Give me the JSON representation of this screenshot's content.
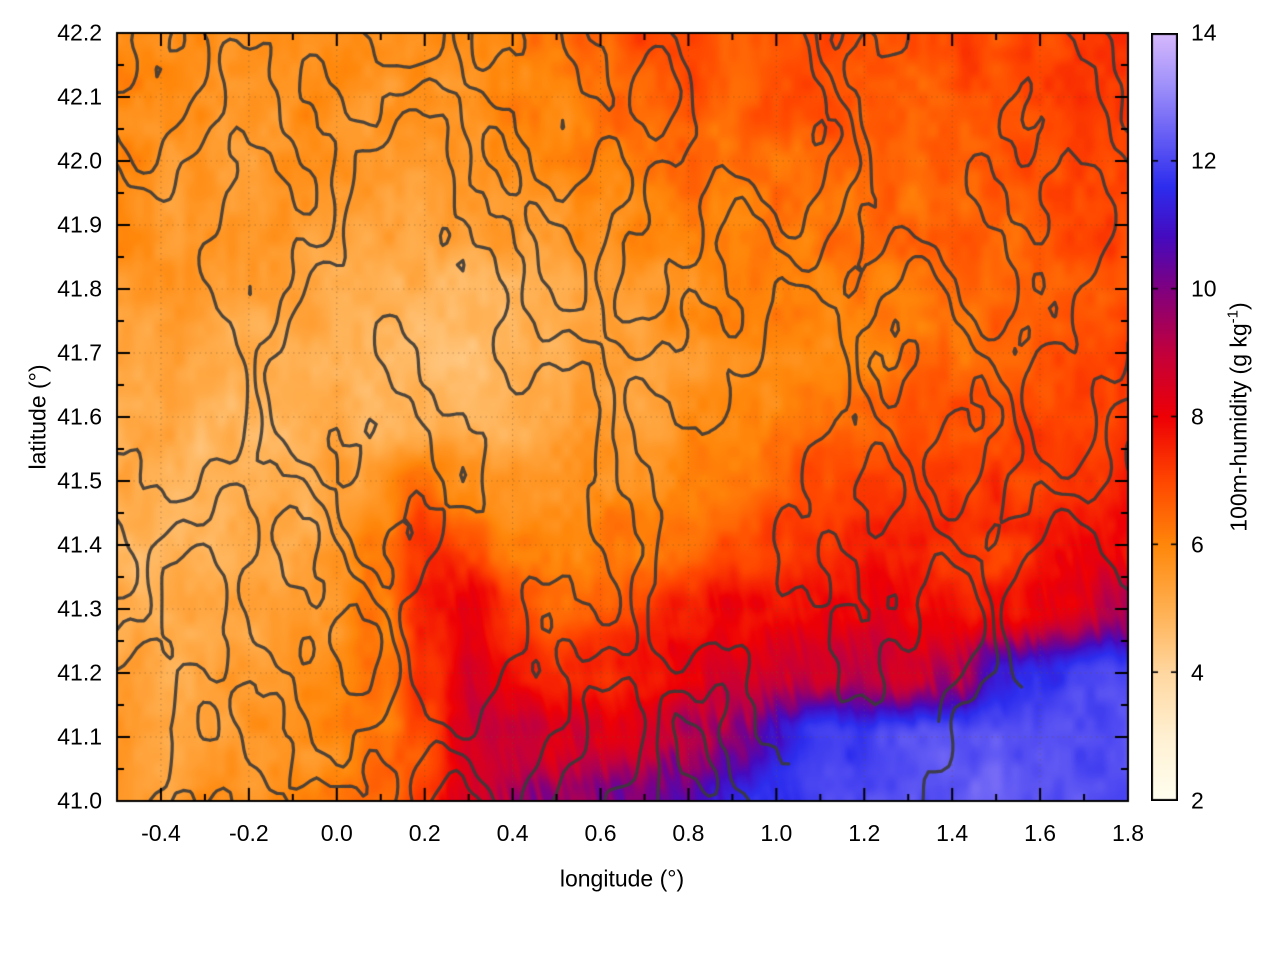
{
  "figure": {
    "background": "#FFFFFF"
  },
  "chart_data": {
    "type": "heatmap",
    "title": "",
    "xlabel": "longitude (°)",
    "ylabel": "latitude (°)",
    "xlim": [
      -0.5,
      1.8
    ],
    "ylim": [
      41.0,
      42.2
    ],
    "xticks": {
      "values": [
        -0.4,
        -0.2,
        0.0,
        0.2,
        0.4,
        0.6,
        0.8,
        1.0,
        1.2,
        1.4,
        1.6,
        1.8
      ],
      "labels": [
        "-0.4",
        "-0.2",
        "0.0",
        "0.2",
        "0.4",
        "0.6",
        "0.8",
        "1.0",
        "1.2",
        "1.4",
        "1.6",
        "1.8"
      ],
      "minor_step": 0.1
    },
    "yticks": {
      "values": [
        41.0,
        41.1,
        41.2,
        41.3,
        41.4,
        41.5,
        41.6,
        41.7,
        41.8,
        41.9,
        42.0,
        42.1,
        42.2
      ],
      "labels": [
        "41.0",
        "41.1",
        "41.2",
        "41.3",
        "41.4",
        "41.5",
        "41.6",
        "41.7",
        "41.8",
        "41.9",
        "42.0",
        "42.1",
        "42.2"
      ],
      "minor_step": 0.05
    },
    "grid": {
      "x_step": 0.2,
      "y_step": 0.1,
      "style": "dotted",
      "color": "rgba(110,80,50,0.45)"
    },
    "colorbar": {
      "label_main": "100m-humidity (g kg",
      "label_sup": "-1",
      "label_end": ")",
      "range": [
        2,
        14
      ],
      "tick_values": [
        2,
        4,
        6,
        8,
        10,
        12,
        14
      ],
      "tick_labels": [
        "2",
        "4",
        "6",
        "8",
        "10",
        "12",
        "14"
      ],
      "palette": [
        [
          2,
          255,
          255,
          240
        ],
        [
          3,
          255,
          240,
          210
        ],
        [
          4,
          255,
          215,
          160
        ],
        [
          5,
          255,
          175,
          80
        ],
        [
          6,
          255,
          135,
          10
        ],
        [
          7,
          255,
          70,
          0
        ],
        [
          8,
          238,
          0,
          5
        ],
        [
          9,
          195,
          0,
          60
        ],
        [
          10,
          128,
          0,
          128
        ],
        [
          10.8,
          70,
          10,
          190
        ],
        [
          11.6,
          45,
          45,
          238
        ],
        [
          12.5,
          110,
          100,
          245
        ],
        [
          13.2,
          160,
          145,
          250
        ],
        [
          14,
          215,
          185,
          252
        ]
      ]
    },
    "humidity_grid": {
      "units": "g kg-1",
      "lon_start": -0.5,
      "lon_step": 0.1,
      "lat_start": 42.2,
      "lat_step": -0.1,
      "rows": [
        [
          6.0,
          5.9,
          5.8,
          5.8,
          5.9,
          6.0,
          5.9,
          5.8,
          5.9,
          6.1,
          6.3,
          6.6,
          6.9,
          7.0,
          6.6,
          6.9,
          7.1,
          6.8,
          6.7,
          6.9,
          7.0,
          7.1,
          7.3,
          7.4
        ],
        [
          5.9,
          5.8,
          5.7,
          5.7,
          5.8,
          5.8,
          5.7,
          5.7,
          5.8,
          6.0,
          6.1,
          6.4,
          6.7,
          7.0,
          6.5,
          6.8,
          7.0,
          6.6,
          6.6,
          6.8,
          6.9,
          7.0,
          7.1,
          7.3
        ],
        [
          5.9,
          5.7,
          5.6,
          5.5,
          5.6,
          5.6,
          5.5,
          5.5,
          5.6,
          5.7,
          5.9,
          6.1,
          6.3,
          6.5,
          6.3,
          6.4,
          6.6,
          6.5,
          6.5,
          6.6,
          6.7,
          6.9,
          7.0,
          7.1
        ],
        [
          5.8,
          5.6,
          5.5,
          5.4,
          5.4,
          5.4,
          5.3,
          5.3,
          5.4,
          5.5,
          5.6,
          5.8,
          6.0,
          6.2,
          6.1,
          6.2,
          6.3,
          6.3,
          6.4,
          6.5,
          6.6,
          6.7,
          6.9,
          7.0
        ],
        [
          5.6,
          5.5,
          5.3,
          5.2,
          5.2,
          5.2,
          5.1,
          5.0,
          4.8,
          4.9,
          5.1,
          5.3,
          5.6,
          5.8,
          5.9,
          6.0,
          6.1,
          6.2,
          6.3,
          6.4,
          6.5,
          6.7,
          6.8,
          6.9
        ],
        [
          5.5,
          5.3,
          5.2,
          5.0,
          5.1,
          5.1,
          4.9,
          4.8,
          4.7,
          4.8,
          5.0,
          5.2,
          5.4,
          5.6,
          5.8,
          5.9,
          6.1,
          6.1,
          6.3,
          6.4,
          6.6,
          6.7,
          6.9,
          7.0
        ],
        [
          5.3,
          5.1,
          4.9,
          4.9,
          5.0,
          5.1,
          4.9,
          4.8,
          4.8,
          5.0,
          5.2,
          5.4,
          5.5,
          5.7,
          5.9,
          6.1,
          6.3,
          6.5,
          6.6,
          6.8,
          6.9,
          7.0,
          7.1,
          7.2
        ],
        [
          5.1,
          4.9,
          4.8,
          4.9,
          5.1,
          5.3,
          5.6,
          6.3,
          5.9,
          5.5,
          5.5,
          5.7,
          5.9,
          6.1,
          6.3,
          6.6,
          6.8,
          7.0,
          7.0,
          7.2,
          7.1,
          7.2,
          7.4,
          7.5
        ],
        [
          4.9,
          4.8,
          4.9,
          5.1,
          5.2,
          5.5,
          6.1,
          7.4,
          6.9,
          6.2,
          6.0,
          6.1,
          6.3,
          6.6,
          6.9,
          7.1,
          7.3,
          7.5,
          7.3,
          7.4,
          7.2,
          7.5,
          7.7,
          7.8
        ],
        [
          5.1,
          4.9,
          5.1,
          5.3,
          5.5,
          5.6,
          6.2,
          7.7,
          8.1,
          7.0,
          6.6,
          6.8,
          7.1,
          7.5,
          7.8,
          8.0,
          8.1,
          8.2,
          7.9,
          7.8,
          7.6,
          8.0,
          8.4,
          9.5
        ],
        [
          5.3,
          5.1,
          5.3,
          5.5,
          5.6,
          5.8,
          6.2,
          7.1,
          8.5,
          8.0,
          7.5,
          7.6,
          7.9,
          8.3,
          8.6,
          8.6,
          8.8,
          9.0,
          8.6,
          9.0,
          10.8,
          11.6,
          11.8,
          11.9
        ],
        [
          5.5,
          5.3,
          5.5,
          5.6,
          5.8,
          5.9,
          6.3,
          6.9,
          8.7,
          9.1,
          8.6,
          8.3,
          8.6,
          9.1,
          9.8,
          11.0,
          11.8,
          12.0,
          12.1,
          12.2,
          12.4,
          12.2,
          12.0,
          12.1
        ],
        [
          5.6,
          5.5,
          5.7,
          5.8,
          6.0,
          6.1,
          6.6,
          7.1,
          8.6,
          9.4,
          9.7,
          9.9,
          10.2,
          10.8,
          11.4,
          11.9,
          12.1,
          12.1,
          11.9,
          12.3,
          12.6,
          12.3,
          12.1,
          12.1
        ]
      ]
    },
    "contours": {
      "description": "terrain elevation contour overlay",
      "color": "#3a3a3a",
      "line_width": 3.2,
      "levels": [
        -1.3,
        0,
        1.3
      ],
      "harmonics": [
        [
          1.6,
          0.55,
          -0.35,
          1.0
        ],
        [
          1.3,
          0.9,
          0.75,
          2.1
        ],
        [
          1.1,
          1.4,
          -1.1,
          4.2
        ],
        [
          0.9,
          2.1,
          1.7,
          0.7
        ],
        [
          0.7,
          3.1,
          -2.3,
          5.1
        ],
        [
          0.5,
          4.3,
          3.6,
          2.9
        ],
        [
          0.25,
          8.0,
          6.5,
          1.3
        ],
        [
          0.18,
          11.0,
          -9.0,
          3.7
        ]
      ]
    }
  }
}
